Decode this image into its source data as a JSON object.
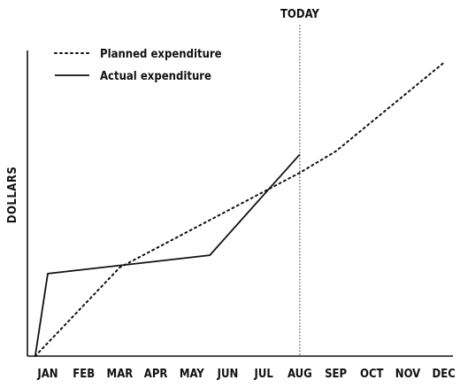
{
  "chart_data": {
    "type": "line",
    "title": "",
    "xlabel": "",
    "ylabel": "DOLLARS",
    "x": [
      "JAN",
      "FEB",
      "MAR",
      "APR",
      "MAY",
      "JUN",
      "JUL",
      "AUG",
      "SEP",
      "OCT",
      "NOV",
      "DEC"
    ],
    "x_start": "origin (before JAN)",
    "ylim": [
      0,
      100
    ],
    "grid": false,
    "legend_position": "top-left",
    "today_marker": {
      "label": "TODAY",
      "month_index": 7
    },
    "series": [
      {
        "name": "Planned expenditure",
        "style": "dotted",
        "color": "#111111",
        "points": [
          {
            "x": -0.35,
            "y": 0
          },
          {
            "x": 2,
            "y": 29
          },
          {
            "x": 7,
            "y": 60
          },
          {
            "x": 8,
            "y": 67
          },
          {
            "x": 11,
            "y": 96
          }
        ]
      },
      {
        "name": "Actual expenditure",
        "style": "solid",
        "color": "#111111",
        "points": [
          {
            "x": -0.35,
            "y": 0
          },
          {
            "x": 0,
            "y": 27
          },
          {
            "x": 4.5,
            "y": 33
          },
          {
            "x": 7,
            "y": 66
          }
        ]
      }
    ]
  }
}
